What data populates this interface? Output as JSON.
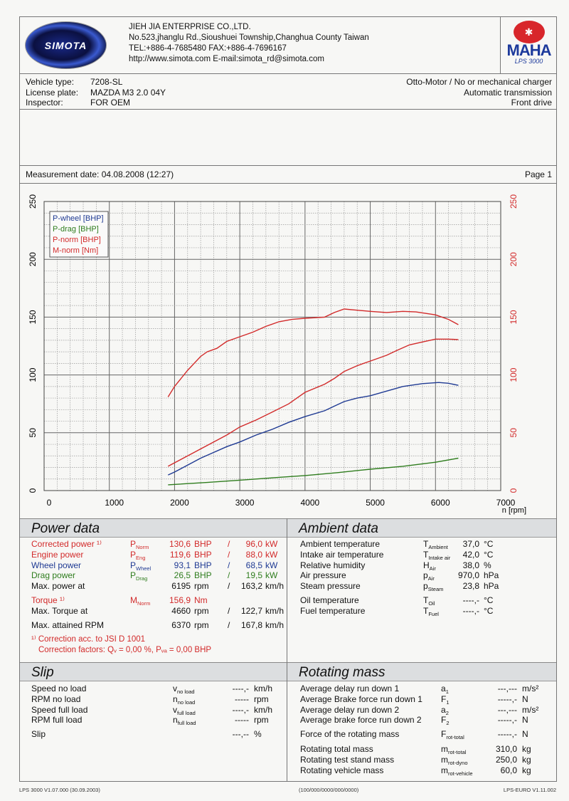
{
  "header": {
    "logo_text": "SIMOTA",
    "company": "JIEH JIA ENTERPRISE CO.,LTD.",
    "address": "No.523,jhanglu Rd.,Sioushuei Township,Changhua County Taiwan",
    "phone": "TEL:+886-4-7685480  FAX:+886-4-7696167",
    "web": "http://www.simota.com  E-mail:simota_rd@simota.com",
    "brand_logo": "MAHA",
    "brand_model": "LPS 3000"
  },
  "vehicle": {
    "labels": [
      "Vehicle type:",
      "License plate:",
      "Inspector:"
    ],
    "values": [
      "7208-SL",
      "MAZDA M3 2.0 04Y",
      "FOR OEM"
    ],
    "right": [
      "Otto-Motor / No or mechanical charger",
      "Automatic transmission",
      "Front drive"
    ]
  },
  "measurement": {
    "date": "Measurement date: 04.08.2008 (12:27)",
    "page": "Page 1"
  },
  "colors": {
    "red": "#d22a2a",
    "blue": "#1f3a93",
    "green": "#2f7d1e"
  },
  "chart_data": {
    "type": "line",
    "xlabel": "n [rpm]",
    "xlim": [
      0,
      7000
    ],
    "xticks": [
      "0",
      "1000",
      "2000",
      "3000",
      "4000",
      "5000",
      "6000",
      "7000"
    ],
    "ylim": [
      0,
      250
    ],
    "yticks": [
      "0",
      "50",
      "100",
      "150",
      "200",
      "250"
    ],
    "y2ticks": [
      "0",
      "50",
      "100",
      "150",
      "200",
      "250"
    ],
    "grid": true,
    "legend": "top-left",
    "series": [
      {
        "name": "P-wheel [BHP]",
        "color": "#1f3a93",
        "x": [
          1900,
          2000,
          2200,
          2400,
          2600,
          2800,
          3000,
          3250,
          3500,
          3750,
          4000,
          4300,
          4450,
          4600,
          4800,
          5000,
          5250,
          5500,
          5800,
          6050,
          6200,
          6350
        ],
        "y": [
          13.5,
          16,
          22,
          28,
          33,
          38,
          42,
          48,
          53,
          59,
          64,
          69,
          73,
          77,
          80,
          82,
          86,
          90,
          92.5,
          93.5,
          92.8,
          91
        ]
      },
      {
        "name": "P-drag [BHP]",
        "color": "#2f7d1e",
        "x": [
          1900,
          2500,
          3000,
          3500,
          4000,
          4500,
          5000,
          5500,
          6000,
          6350
        ],
        "y": [
          5,
          7,
          9,
          11,
          13,
          15.5,
          18.5,
          21,
          24.5,
          28
        ]
      },
      {
        "name": "P-norm [BHP]",
        "color": "#d22a2a",
        "x": [
          1900,
          2000,
          2200,
          2400,
          2600,
          2800,
          3000,
          3250,
          3500,
          3750,
          4000,
          4300,
          4450,
          4600,
          4800,
          5000,
          5250,
          5400,
          5600,
          5800,
          6000,
          6200,
          6350
        ],
        "y": [
          21,
          24,
          30,
          36,
          42,
          48,
          55,
          61,
          68,
          75,
          85,
          92,
          97,
          103,
          108,
          112,
          117,
          121,
          126,
          128.5,
          131,
          131,
          130.6
        ]
      },
      {
        "name": "M-norm [Nm]",
        "color": "#d22a2a",
        "x": [
          1900,
          2000,
          2200,
          2400,
          2500,
          2650,
          2800,
          3000,
          3200,
          3400,
          3600,
          3800,
          4000,
          4300,
          4450,
          4600,
          4800,
          5000,
          5250,
          5500,
          5700,
          6000,
          6200,
          6350
        ],
        "y": [
          81,
          90,
          104,
          116,
          120,
          123,
          129,
          133,
          137,
          142,
          146,
          148,
          149,
          150,
          154,
          157,
          156,
          155,
          154,
          155,
          154.5,
          152,
          148,
          143.5
        ]
      }
    ]
  },
  "power": {
    "title": "Power data",
    "rows": [
      {
        "label": "Corrected power ¹⁾",
        "sym": "P",
        "sub": "Norm",
        "v1": "130,6",
        "u1": "BHP",
        "sep": "/",
        "v2": "96,0",
        "u2": "kW",
        "color": "red"
      },
      {
        "label": "Engine power",
        "sym": "P",
        "sub": "Eng",
        "v1": "119,6",
        "u1": "BHP",
        "sep": "/",
        "v2": "88,0",
        "u2": "kW",
        "color": "red"
      },
      {
        "label": "Wheel power",
        "sym": "P",
        "sub": "Wheel",
        "v1": "93,1",
        "u1": "BHP",
        "sep": "/",
        "v2": "68,5",
        "u2": "kW",
        "color": "blue"
      },
      {
        "label": "Drag power",
        "sym": "P",
        "sub": "Drag",
        "v1": "26,5",
        "u1": "BHP",
        "sep": "/",
        "v2": "19,5",
        "u2": "kW",
        "color": "green"
      },
      {
        "label": "Max. power at",
        "sym": "",
        "sub": "",
        "v1": "6195",
        "u1": "rpm",
        "sep": "/",
        "v2": "163,2",
        "u2": "km/h",
        "color": ""
      },
      {
        "label": "Torque ¹⁾",
        "sym": "M",
        "sub": "Norm",
        "v1": "156,9",
        "u1": "Nm",
        "sep": "",
        "v2": "",
        "u2": "",
        "color": "red"
      },
      {
        "label": "Max. Torque at",
        "sym": "",
        "sub": "",
        "v1": "4660",
        "u1": "rpm",
        "sep": "/",
        "v2": "122,7",
        "u2": "km/h",
        "color": ""
      },
      {
        "label": "Max. attained RPM",
        "sym": "",
        "sub": "",
        "v1": "6370",
        "u1": "rpm",
        "sep": "/",
        "v2": "167,8",
        "u2": "km/h",
        "color": ""
      }
    ],
    "footnote1": "¹⁾ Correction acc. to JSI D 1001",
    "footnote2": "Correction factors: Qᵥ =   0,00 %, Pᵥₐ =   0,00 BHP"
  },
  "ambient": {
    "title": "Ambient data",
    "rows": [
      {
        "label": "Ambient temperature",
        "sym": "T",
        "sub": "Ambient",
        "v": "37,0",
        "u": "°C"
      },
      {
        "label": "Intake air temperature",
        "sym": "T",
        "sub": "Intake air",
        "v": "42,0",
        "u": "°C"
      },
      {
        "label": "Relative humidity",
        "sym": "H",
        "sub": "Air",
        "v": "38,0",
        "u": "%"
      },
      {
        "label": "Air pressure",
        "sym": "p",
        "sub": "Air",
        "v": "970,0",
        "u": "hPa"
      },
      {
        "label": "Steam pressure",
        "sym": "p",
        "sub": "Steam",
        "v": "23,8",
        "u": "hPa"
      },
      {
        "label": "Oil temperature",
        "sym": "T",
        "sub": "Oil",
        "v": "----,-",
        "u": "°C"
      },
      {
        "label": "Fuel temperature",
        "sym": "T",
        "sub": "Fuel",
        "v": "----,-",
        "u": "°C"
      }
    ]
  },
  "slip": {
    "title": "Slip",
    "rows": [
      {
        "label": "Speed no load",
        "sym": "v",
        "sub": "no load",
        "v": "----,-",
        "u": "km/h"
      },
      {
        "label": "RPM no load",
        "sym": "n",
        "sub": "no load",
        "v": "-----",
        "u": "rpm"
      },
      {
        "label": "Speed full load",
        "sym": "v",
        "sub": "full load",
        "v": "----,-",
        "u": "km/h"
      },
      {
        "label": "RPM full load",
        "sym": "n",
        "sub": "full load",
        "v": "-----",
        "u": "rpm"
      },
      {
        "label": "Slip",
        "sym": "",
        "sub": "",
        "v": "---,--",
        "u": "%"
      }
    ]
  },
  "rotating": {
    "title": "Rotating mass",
    "rows": [
      {
        "label": "Average delay run down 1",
        "sym": "a",
        "sub": "1",
        "v": "---,---",
        "u": "m/s²"
      },
      {
        "label": "Average Brake force run down 1",
        "sym": "F",
        "sub": "1",
        "v": "-----,-",
        "u": "N"
      },
      {
        "label": "Average delay run down 2",
        "sym": "a",
        "sub": "2",
        "v": "---,---",
        "u": "m/s²"
      },
      {
        "label": "Average brake force run down 2",
        "sym": "F",
        "sub": "2",
        "v": "-----,-",
        "u": "N"
      },
      {
        "label": "Force of the rotating mass",
        "sym": "F",
        "sub": "rot-total",
        "v": "-----,-",
        "u": "N"
      },
      {
        "label": "Rotating total mass",
        "sym": "m",
        "sub": "rot-total",
        "v": "310,0",
        "u": "kg"
      },
      {
        "label": "Rotating test stand mass",
        "sym": "m",
        "sub": "rot-dyno",
        "v": "250,0",
        "u": "kg"
      },
      {
        "label": "Rotating vehicle mass",
        "sym": "m",
        "sub": "rot-vehicle",
        "v": "60,0",
        "u": "kg"
      }
    ]
  },
  "footer": {
    "left": "LPS 3000 V1.07.000 (30.09.2003)",
    "center": "(100/000/0000/000/0000)",
    "right": "LPS-EURO V1.11.002"
  }
}
